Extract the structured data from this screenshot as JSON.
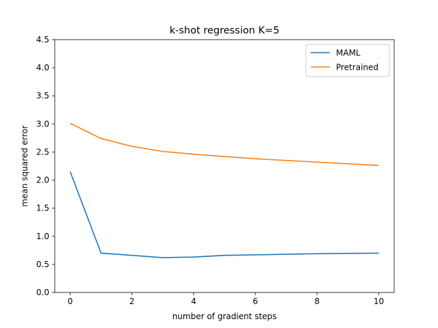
{
  "chart_data": {
    "type": "line",
    "title": "k-shot regression K=5",
    "xlabel": "number of gradient steps",
    "ylabel": "mean squared error",
    "xlim": [
      -0.5,
      10.5
    ],
    "ylim": [
      0,
      4.5
    ],
    "xticks": [
      0,
      2,
      4,
      6,
      8,
      10
    ],
    "xtick_labels": [
      "0",
      "2",
      "4",
      "6",
      "8",
      "10"
    ],
    "yticks": [
      0,
      0.5,
      1,
      1.5,
      2,
      2.5,
      3,
      3.5,
      4,
      4.5
    ],
    "ytick_labels": [
      "0.0",
      "0.5",
      "1.0",
      "1.5",
      "2.0",
      "2.5",
      "3.0",
      "3.5",
      "4.0",
      "4.5"
    ],
    "grid": false,
    "legend_position": "top-right",
    "x": [
      0,
      1,
      2,
      3,
      4,
      5,
      6,
      7,
      8,
      9,
      10
    ],
    "series": [
      {
        "name": "MAML",
        "color": "#1f77b4",
        "values": [
          2.15,
          0.7,
          0.66,
          0.62,
          0.63,
          0.66,
          0.67,
          0.68,
          0.69,
          0.695,
          0.7
        ]
      },
      {
        "name": "Pretrained",
        "color": "#ff7f0e",
        "values": [
          3.01,
          2.74,
          2.6,
          2.51,
          2.46,
          2.42,
          2.38,
          2.35,
          2.32,
          2.29,
          2.26
        ]
      }
    ]
  }
}
